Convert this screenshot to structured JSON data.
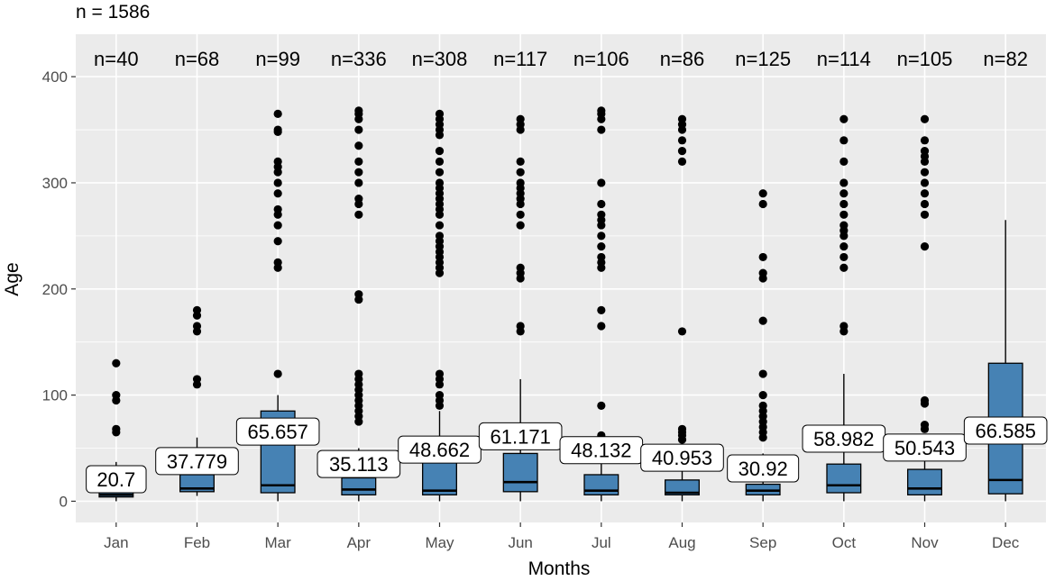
{
  "chart_data": {
    "type": "box",
    "total_label": "n = 1586",
    "xlabel": "Months",
    "ylabel": "Age",
    "ylim": [
      -20,
      440
    ],
    "yticks": [
      0,
      100,
      200,
      300,
      400
    ],
    "grid": true,
    "colors": {
      "panel": "#ebebeb",
      "grid": "#ffffff",
      "box": "#4682b4"
    },
    "categories": [
      "Jan",
      "Feb",
      "Mar",
      "Apr",
      "May",
      "Jun",
      "Jul",
      "Aug",
      "Sep",
      "Oct",
      "Nov",
      "Dec"
    ],
    "n_labels": [
      "n=40",
      "n=68",
      "n=99",
      "n=336",
      "n=308",
      "n=117",
      "n=106",
      "n=86",
      "n=125",
      "n=114",
      "n=105",
      "n=82"
    ],
    "mean_labels": [
      "20.7",
      "37.779",
      "65.657",
      "35.113",
      "48.662",
      "61.171",
      "48.132",
      "40.953",
      "30.92",
      "58.982",
      "50.543",
      "66.585"
    ],
    "boxes": [
      {
        "q1": 4,
        "median": 6,
        "q3": 8,
        "whisker_low": 0,
        "whisker_high": 37,
        "outliers": [
          130,
          100,
          95,
          68,
          65
        ]
      },
      {
        "q1": 9,
        "median": 12,
        "q3": 25,
        "whisker_low": 5,
        "whisker_high": 60,
        "outliers": [
          180,
          175,
          165,
          160,
          115,
          110
        ]
      },
      {
        "q1": 8,
        "median": 15,
        "q3": 85,
        "whisker_low": 0,
        "whisker_high": 100,
        "outliers": [
          365,
          350,
          348,
          320,
          315,
          310,
          300,
          290,
          275,
          270,
          260,
          245,
          225,
          220,
          120
        ]
      },
      {
        "q1": 6,
        "median": 11,
        "q3": 22,
        "whisker_low": 0,
        "whisker_high": 50,
        "outliers": [
          368,
          365,
          360,
          350,
          335,
          320,
          310,
          300,
          285,
          280,
          270,
          195,
          190,
          120,
          115,
          110,
          105,
          100,
          95,
          90,
          85,
          80,
          75
        ]
      },
      {
        "q1": 6,
        "median": 10,
        "q3": 40,
        "whisker_low": 0,
        "whisker_high": 85,
        "outliers": [
          365,
          360,
          355,
          350,
          345,
          330,
          320,
          310,
          300,
          295,
          290,
          285,
          280,
          275,
          270,
          260,
          250,
          245,
          240,
          235,
          230,
          225,
          220,
          215,
          120,
          115,
          110,
          100,
          95,
          90
        ]
      },
      {
        "q1": 9,
        "median": 18,
        "q3": 45,
        "whisker_low": 0,
        "whisker_high": 115,
        "outliers": [
          360,
          355,
          350,
          320,
          310,
          300,
          295,
          290,
          285,
          280,
          270,
          260,
          220,
          215,
          210,
          165,
          160
        ]
      },
      {
        "q1": 6,
        "median": 10,
        "q3": 25,
        "whisker_low": 0,
        "whisker_high": 60,
        "outliers": [
          368,
          365,
          360,
          350,
          300,
          280,
          270,
          265,
          260,
          250,
          240,
          230,
          225,
          220,
          180,
          165,
          90,
          62
        ]
      },
      {
        "q1": 6,
        "median": 8,
        "q3": 20,
        "whisker_low": 0,
        "whisker_high": 55,
        "outliers": [
          360,
          355,
          350,
          340,
          330,
          320,
          160,
          68,
          65,
          62,
          58
        ]
      },
      {
        "q1": 6,
        "median": 10,
        "q3": 16,
        "whisker_low": 0,
        "whisker_high": 45,
        "outliers": [
          290,
          280,
          230,
          215,
          210,
          170,
          120,
          100,
          90,
          85,
          80,
          75,
          70,
          65,
          60
        ]
      },
      {
        "q1": 8,
        "median": 15,
        "q3": 35,
        "whisker_low": 0,
        "whisker_high": 120,
        "outliers": [
          360,
          340,
          320,
          300,
          290,
          280,
          270,
          260,
          255,
          250,
          240,
          230,
          220,
          165,
          160
        ]
      },
      {
        "q1": 6,
        "median": 12,
        "q3": 30,
        "whisker_low": 0,
        "whisker_high": 60,
        "outliers": [
          360,
          340,
          330,
          325,
          320,
          310,
          300,
          290,
          280,
          270,
          240,
          95,
          92,
          72,
          68
        ]
      },
      {
        "q1": 7,
        "median": 20,
        "q3": 130,
        "whisker_low": 0,
        "whisker_high": 265,
        "outliers": []
      }
    ]
  }
}
